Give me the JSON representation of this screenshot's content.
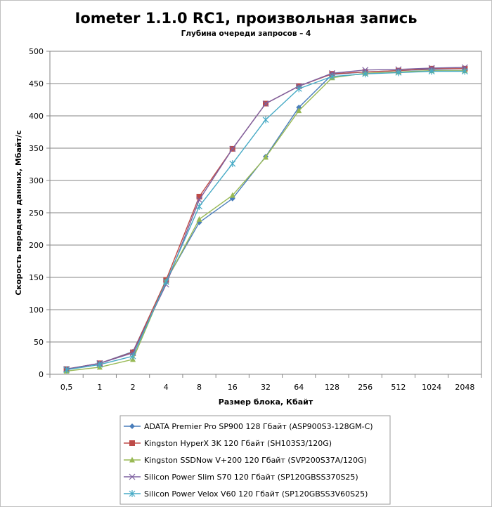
{
  "chart_data": {
    "type": "line",
    "title": "Iometer 1.1.0 RC1, произвольная запись",
    "subtitle": "Глубина очереди запросов – 4",
    "xlabel": "Размер блока, Кбайт",
    "ylabel": "Скорость передачи данных, Мбайт/с",
    "categories": [
      "0,5",
      "1",
      "2",
      "4",
      "8",
      "16",
      "32",
      "64",
      "128",
      "256",
      "512",
      "1024",
      "2048"
    ],
    "ylim": [
      0,
      500
    ],
    "yticks": [
      0,
      50,
      100,
      150,
      200,
      250,
      300,
      350,
      400,
      450,
      500
    ],
    "grid": true,
    "legend_position": "bottom",
    "series": [
      {
        "name": "ADATA  Premier Pro SP900 128 Гбайт (ASP900S3-128GM-C)",
        "color": "#4a7ebb",
        "marker": "diamond",
        "values": [
          8,
          17,
          35,
          145,
          235,
          272,
          337,
          413,
          464,
          468,
          470,
          472,
          473
        ]
      },
      {
        "name": "Kingston HyperX  3K 120 Гбайт (SH103S3/120G)",
        "color": "#be4b48",
        "marker": "square",
        "values": [
          8,
          17,
          34,
          146,
          275,
          349,
          419,
          446,
          465,
          468,
          470,
          473,
          473
        ]
      },
      {
        "name": "Kingston SSDNow  V+200 120 Гбайт (SVP200S37A/120G)",
        "color": "#98b954",
        "marker": "triangle",
        "values": [
          5,
          11,
          23,
          144,
          240,
          277,
          336,
          408,
          459,
          466,
          468,
          470,
          470
        ]
      },
      {
        "name": "Silicon Power Slim S70 120 Гбайт (SP120GBSS370S25)",
        "color": "#7d60a0",
        "marker": "x",
        "values": [
          8,
          17,
          33,
          139,
          270,
          349,
          419,
          446,
          466,
          471,
          472,
          474,
          475
        ]
      },
      {
        "name": "Silicon Power Velox V60 120 Гбайт (SP120GBSS3V60S25)",
        "color": "#46aac5",
        "marker": "star",
        "values": [
          7,
          15,
          28,
          143,
          260,
          326,
          394,
          442,
          461,
          465,
          467,
          469,
          469
        ]
      }
    ]
  }
}
